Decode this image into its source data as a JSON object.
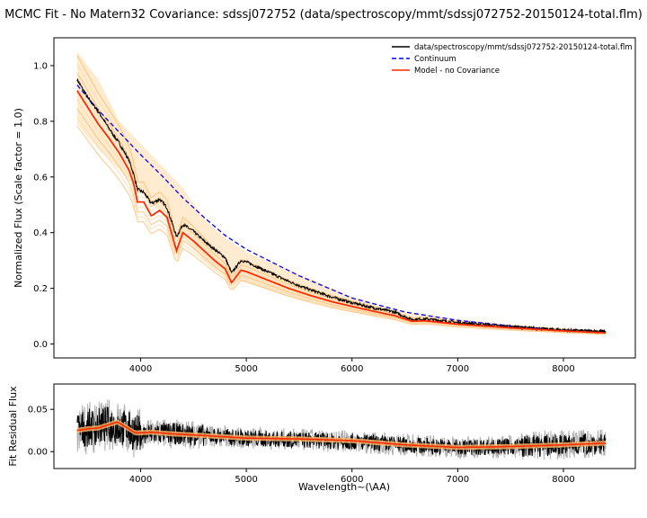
{
  "figure": {
    "title": "MCMC Fit - No Matern32 Covariance: sdssj072752 (data/spectroscopy/mmt/sdssj072752-20150124-total.flm)"
  },
  "chart_data": [
    {
      "type": "line",
      "panel": "main",
      "title": "MCMC Fit - No Matern32 Covariance: sdssj072752 (data/spectroscopy/mmt/sdssj072752-20150124-total.flm)",
      "xlabel": "",
      "ylabel": "Normalized Flux (Scale factor = 1.0)",
      "xlim": [
        3180,
        8680
      ],
      "ylim": [
        -0.05,
        1.1
      ],
      "xticks": [
        4000,
        5000,
        6000,
        7000,
        8000
      ],
      "yticks": [
        0.0,
        0.2,
        0.4,
        0.6,
        0.8,
        1.0
      ],
      "ytick_labels": [
        "0.0",
        "0.2",
        "0.4",
        "0.6",
        "0.8",
        "1.0"
      ],
      "legend_position": "top-right",
      "legend": [
        {
          "label": "data/spectroscopy/mmt/sdssj072752-20150124-total.flm",
          "color": "#000000",
          "style": "solid"
        },
        {
          "label": "Continuum",
          "color": "#0000ff",
          "style": "dashed"
        },
        {
          "label": "Model - no Covariance",
          "color": "#ff2a00",
          "style": "solid"
        }
      ],
      "continuum": {
        "x": [
          3400,
          3600,
          3800,
          4000,
          4200,
          4400,
          4600,
          4800,
          5000,
          5500,
          6000,
          6500,
          7000,
          7500,
          8000,
          8400
        ],
        "y": [
          0.93,
          0.84,
          0.76,
          0.68,
          0.605,
          0.525,
          0.455,
          0.39,
          0.34,
          0.245,
          0.165,
          0.115,
          0.085,
          0.065,
          0.05,
          0.045
        ]
      },
      "data_spectrum": {
        "x": [
          3400,
          3500,
          3600,
          3700,
          3800,
          3890,
          3935,
          3970,
          4030,
          4102,
          4180,
          4250,
          4340,
          4400,
          4500,
          4600,
          4700,
          4800,
          4861,
          4950,
          5000,
          5200,
          5400,
          5600,
          5800,
          6000,
          6200,
          6400,
          6563,
          6700,
          7000,
          7500,
          8000,
          8400
        ],
        "y": [
          0.95,
          0.885,
          0.835,
          0.775,
          0.72,
          0.66,
          0.61,
          0.555,
          0.545,
          0.505,
          0.52,
          0.49,
          0.385,
          0.43,
          0.405,
          0.37,
          0.34,
          0.31,
          0.255,
          0.3,
          0.295,
          0.26,
          0.225,
          0.195,
          0.17,
          0.148,
          0.13,
          0.115,
          0.088,
          0.09,
          0.077,
          0.062,
          0.05,
          0.045
        ]
      },
      "model": {
        "x": [
          3400,
          3500,
          3600,
          3700,
          3800,
          3890,
          3935,
          3970,
          4030,
          4102,
          4180,
          4250,
          4340,
          4400,
          4500,
          4600,
          4700,
          4800,
          4861,
          4950,
          5000,
          5200,
          5400,
          5600,
          5800,
          6000,
          6200,
          6400,
          6563,
          6700,
          7000,
          7500,
          8000,
          8400
        ],
        "y": [
          0.91,
          0.85,
          0.79,
          0.74,
          0.685,
          0.625,
          0.575,
          0.51,
          0.51,
          0.46,
          0.48,
          0.455,
          0.335,
          0.4,
          0.37,
          0.335,
          0.3,
          0.27,
          0.22,
          0.265,
          0.26,
          0.23,
          0.2,
          0.175,
          0.153,
          0.135,
          0.118,
          0.102,
          0.082,
          0.083,
          0.071,
          0.058,
          0.047,
          0.04
        ]
      },
      "model_band": {
        "x": [
          3400,
          3600,
          3800,
          4000,
          4200,
          4400,
          4600,
          4800,
          5000,
          5500,
          6000,
          6500,
          7000,
          7500,
          8000,
          8400
        ],
        "low": [
          0.79,
          0.7,
          0.625,
          0.545,
          0.47,
          0.38,
          0.3,
          0.245,
          0.22,
          0.16,
          0.115,
          0.085,
          0.065,
          0.05,
          0.04,
          0.035
        ],
        "high": [
          1.05,
          0.95,
          0.8,
          0.72,
          0.64,
          0.56,
          0.45,
          0.38,
          0.33,
          0.25,
          0.17,
          0.115,
          0.09,
          0.07,
          0.055,
          0.05
        ]
      }
    },
    {
      "type": "line",
      "panel": "residual",
      "xlabel": "Wavelength~(\\AA)",
      "ylabel": "Fit Residual Flux",
      "xlim": [
        3180,
        8680
      ],
      "ylim": [
        -0.02,
        0.08
      ],
      "xticks": [
        4000,
        5000,
        6000,
        7000,
        8000
      ],
      "yticks": [
        0.0,
        0.05
      ],
      "ytick_labels": [
        "0.00",
        "0.05"
      ],
      "residual": {
        "x": [
          3400,
          3500,
          3600,
          3700,
          3800,
          3900,
          4000,
          4200,
          4500,
          5000,
          5500,
          6000,
          6500,
          7000,
          7500,
          8000,
          8400
        ],
        "y": [
          0.025,
          0.028,
          0.03,
          0.032,
          0.03,
          0.025,
          0.02,
          0.022,
          0.02,
          0.016,
          0.014,
          0.012,
          0.008,
          0.005,
          0.006,
          0.008,
          0.01
        ]
      },
      "residual_model": {
        "x": [
          3400,
          3500,
          3600,
          3700,
          3780,
          3850,
          3950,
          4100,
          4300,
          4600,
          5000,
          5500,
          6000,
          6500,
          7000,
          7500,
          8000,
          8400
        ],
        "y": [
          0.025,
          0.027,
          0.028,
          0.032,
          0.035,
          0.03,
          0.022,
          0.023,
          0.021,
          0.019,
          0.016,
          0.015,
          0.013,
          0.008,
          0.005,
          0.006,
          0.008,
          0.01
        ]
      }
    }
  ],
  "colors": {
    "data": "#000000",
    "continuum": "#0000ff",
    "model": "#ff2a00",
    "band": "#ffdba8",
    "band_dark": "#ffb96b"
  }
}
